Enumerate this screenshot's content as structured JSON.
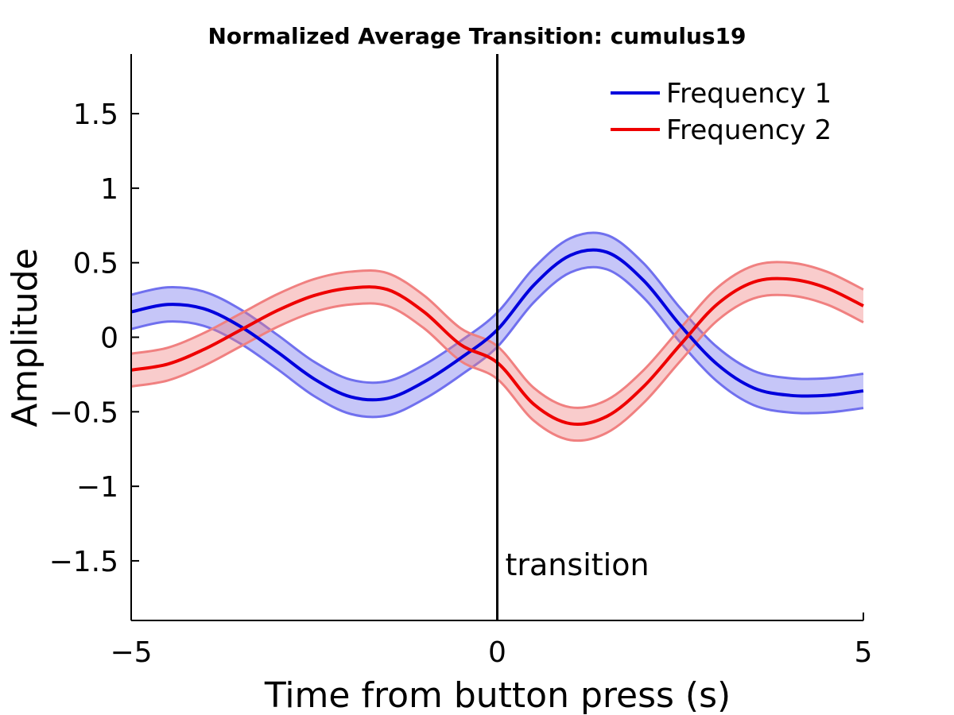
{
  "chart_data": {
    "type": "line",
    "title": "Normalized Average Transition: cumulus19",
    "xlabel": "Time from button press (s)",
    "ylabel": "Amplitude",
    "xlim": [
      -5,
      5
    ],
    "ylim": [
      -1.9,
      1.9
    ],
    "xticks": [
      -5,
      0,
      5
    ],
    "xtick_labels": [
      "−5",
      "0",
      "5"
    ],
    "yticks": [
      -1.5,
      -1,
      -0.5,
      0,
      0.5,
      1,
      1.5
    ],
    "ytick_labels": [
      "−1.5",
      "−1",
      "−0.5",
      "0",
      "0.5",
      "1",
      "1.5"
    ],
    "grid": false,
    "legend_position": "top-right",
    "x": [
      -5,
      -4.5,
      -4,
      -3.5,
      -3,
      -2.5,
      -2,
      -1.5,
      -1,
      -0.5,
      0,
      0.5,
      1,
      1.5,
      2,
      2.5,
      3,
      3.5,
      4,
      4.5,
      5
    ],
    "series": [
      {
        "name": "Frequency 1",
        "color": "#0000dd",
        "band_color": "#7070ee",
        "values": [
          0.17,
          0.22,
          0.19,
          0.07,
          -0.1,
          -0.28,
          -0.4,
          -0.41,
          -0.3,
          -0.14,
          0.05,
          0.35,
          0.55,
          0.57,
          0.38,
          0.08,
          -0.18,
          -0.34,
          -0.39,
          -0.39,
          -0.36
        ],
        "band_halfwidth": 0.115
      },
      {
        "name": "Frequency 2",
        "color": "#ee0000",
        "band_color": "#f08080",
        "values": [
          -0.22,
          -0.18,
          -0.08,
          0.05,
          0.18,
          0.28,
          0.33,
          0.32,
          0.17,
          -0.05,
          -0.17,
          -0.45,
          -0.58,
          -0.53,
          -0.33,
          -0.05,
          0.22,
          0.37,
          0.39,
          0.33,
          0.21
        ],
        "band_halfwidth": 0.11
      }
    ],
    "vline": {
      "x": 0,
      "label": "transition",
      "color": "#000000"
    }
  }
}
